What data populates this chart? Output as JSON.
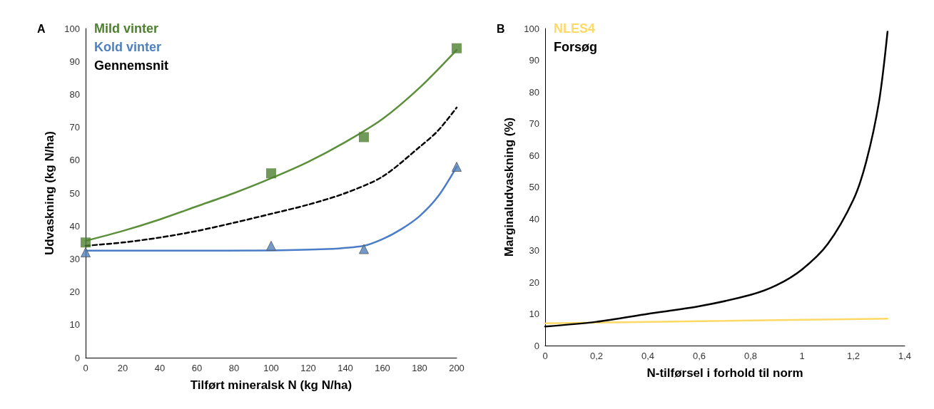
{
  "chart_data": [
    {
      "type": "line",
      "xlabel": "Tilført mineralsk N (kg N/ha)",
      "ylabel": "Udvaskning (kg N/ha)",
      "annotations": [
        "A"
      ],
      "xlim": [
        0,
        200
      ],
      "xticks": [
        0,
        20,
        40,
        60,
        80,
        100,
        120,
        140,
        160,
        180,
        200
      ],
      "ylim": [
        0,
        100
      ],
      "yticks": [
        0,
        10,
        20,
        30,
        40,
        50,
        60,
        70,
        80,
        90,
        100
      ],
      "grid": false,
      "legend": "top left",
      "series": [
        {
          "name": "Mild vinter",
          "type": "scatter",
          "marker": "square",
          "color": "#4e8031",
          "x": [
            0,
            100,
            150,
            200
          ],
          "values": [
            35,
            56,
            67,
            94
          ]
        },
        {
          "name": "Kold vinter",
          "type": "scatter",
          "marker": "triangle",
          "color": "#4f81bd",
          "x": [
            0,
            100,
            150,
            200
          ],
          "values": [
            32,
            34,
            33,
            58
          ]
        },
        {
          "name": "Gennemsnit",
          "type": "line",
          "line_style": "dashed",
          "color": "#000000",
          "x": [
            0,
            20,
            40,
            60,
            80,
            100,
            120,
            140,
            160,
            180,
            190,
            200
          ],
          "values": [
            34,
            35,
            36.5,
            38.5,
            41,
            43.7,
            46.5,
            50,
            55,
            64,
            69,
            76
          ]
        },
        {
          "type": "line",
          "line_style": "solid",
          "color": "#5b8f3a",
          "x": [
            0,
            20,
            40,
            60,
            80,
            100,
            120,
            140,
            160,
            180,
            200
          ],
          "values": [
            35.5,
            38.5,
            42,
            46,
            50,
            54.5,
            59.5,
            65.5,
            72.5,
            82,
            93.5
          ]
        },
        {
          "type": "line",
          "line_style": "solid",
          "color": "#4a7cc7",
          "x": [
            0,
            50,
            100,
            130,
            150,
            160,
            170,
            180,
            190,
            200
          ],
          "values": [
            32.5,
            32.5,
            32.6,
            33,
            34,
            36,
            39,
            43,
            49,
            58
          ]
        }
      ]
    },
    {
      "type": "line",
      "xlabel": "N-tilførsel i forhold til norm",
      "ylabel": "Marginaludvaskning (%)",
      "annotations": [
        "B"
      ],
      "xlim": [
        0,
        1.4
      ],
      "xticks": [
        0,
        {
          "value": 0.2,
          "label": "0,2"
        },
        {
          "value": 0.4,
          "label": "0,4"
        },
        {
          "value": 0.6,
          "label": "0,6"
        },
        {
          "value": 0.8,
          "label": "0,8"
        },
        1,
        {
          "value": 1.2,
          "label": "1,2"
        },
        {
          "value": 1.4,
          "label": "1,4"
        }
      ],
      "ylim": [
        0,
        100
      ],
      "yticks": [
        0,
        10,
        20,
        30,
        40,
        50,
        60,
        70,
        80,
        90,
        100
      ],
      "grid": false,
      "legend": "top left",
      "series": [
        {
          "name": "NLES4",
          "type": "line",
          "line_style": "solid",
          "color": "#ffd966",
          "x": [
            0,
            1.333
          ],
          "values": [
            7,
            8.5
          ]
        },
        {
          "name": "Forsøg",
          "type": "line",
          "line_style": "solid",
          "color": "#000000",
          "x": [
            0,
            0.2,
            0.4,
            0.6,
            0.8,
            0.9,
            1.0,
            1.1,
            1.2,
            1.25,
            1.3,
            1.333
          ],
          "values": [
            6,
            7.5,
            10,
            12.4,
            16,
            19,
            24,
            32,
            46,
            58,
            77,
            99
          ]
        }
      ]
    }
  ]
}
